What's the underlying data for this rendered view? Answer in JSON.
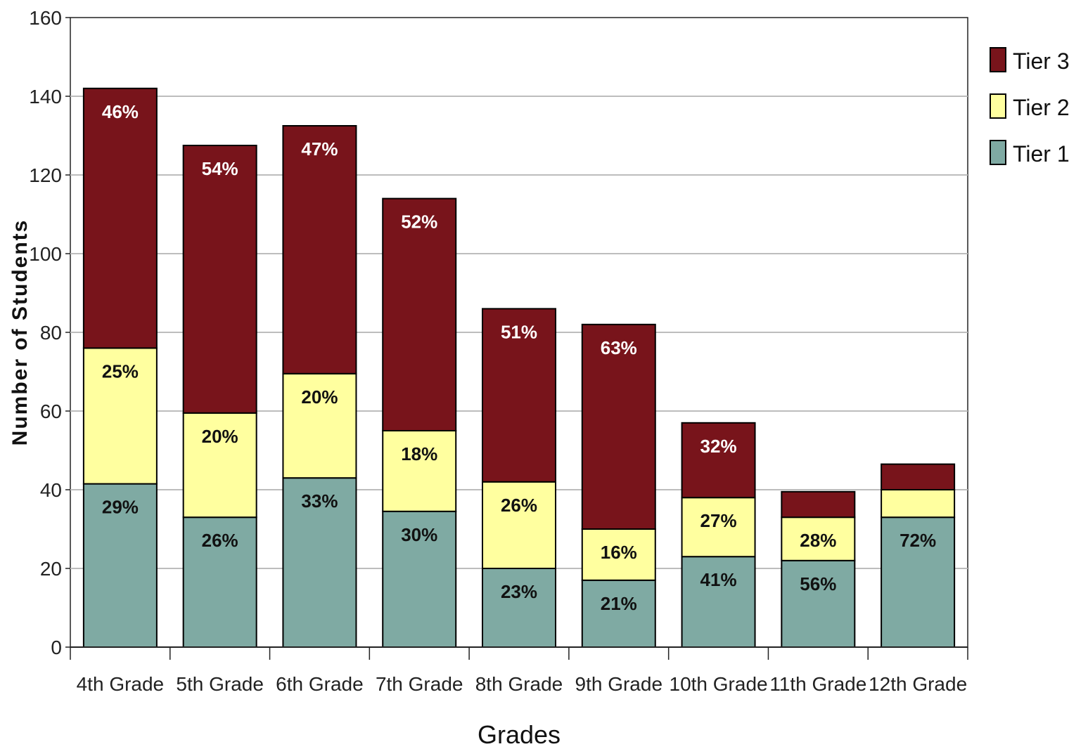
{
  "chart_data": {
    "type": "bar",
    "stacked": true,
    "categories": [
      "4th Grade",
      "5th Grade",
      "6th Grade",
      "7th Grade",
      "8th Grade",
      "9th Grade",
      "10th Grade",
      "11th Grade",
      "12th Grade"
    ],
    "series": [
      {
        "name": "Tier 1",
        "color": "#7faaa3",
        "values": [
          41.5,
          33,
          43,
          34.5,
          20,
          17,
          23,
          22,
          33
        ],
        "labels": [
          "29%",
          "26%",
          "33%",
          "30%",
          "23%",
          "21%",
          "41%",
          "56%",
          "72%"
        ]
      },
      {
        "name": "Tier 2",
        "color": "#ffff9f",
        "values": [
          34.5,
          26.5,
          26.5,
          20.5,
          22,
          13,
          15,
          11,
          7
        ],
        "labels": [
          "25%",
          "20%",
          "20%",
          "18%",
          "26%",
          "16%",
          "27%",
          "28%",
          ""
        ]
      },
      {
        "name": "Tier 3",
        "color": "#78141b",
        "values": [
          66,
          68,
          63,
          59,
          44,
          52,
          19,
          6.5,
          6.5
        ],
        "labels": [
          "46%",
          "54%",
          "47%",
          "52%",
          "51%",
          "63%",
          "32%",
          "",
          ""
        ]
      }
    ],
    "title": "",
    "xlabel": "Grades",
    "ylabel": "Number of Students",
    "ylim": [
      0,
      160
    ],
    "yticks": [
      0,
      20,
      40,
      60,
      80,
      100,
      120,
      140,
      160
    ],
    "grid": true,
    "legend_position": "right",
    "legend_order": [
      "Tier 3",
      "Tier 2",
      "Tier 1"
    ]
  }
}
